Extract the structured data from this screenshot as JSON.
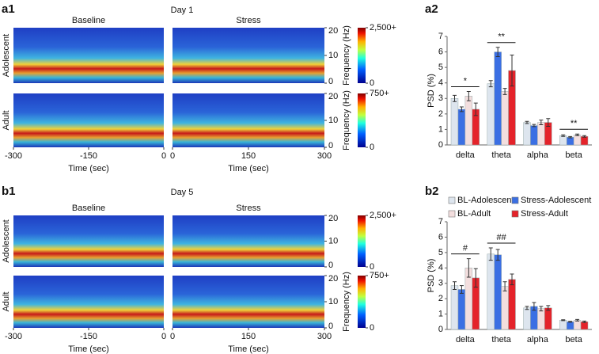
{
  "chart_data": [
    {
      "type": "spectrogram",
      "panel_label": "a1",
      "title": "Day 1",
      "panels": [
        {
          "name": "Baseline",
          "xlim": [
            -300,
            0
          ],
          "xticks": [
            -300,
            -150,
            0
          ]
        },
        {
          "name": "Stress",
          "xlim": [
            0,
            300
          ],
          "xticks": [
            0,
            150,
            300
          ]
        }
      ],
      "xlabel": "Time (sec)",
      "ylim": [
        0,
        20
      ],
      "yticks": [
        0,
        10,
        20
      ],
      "rows": [
        {
          "name": "Adolescent",
          "ylabel": "Frequency (Hz)",
          "colorbar_ticks": [
            0,
            {
              "value": 2500,
              "label": "2,500+"
            }
          ]
        },
        {
          "name": "Adult",
          "ylabel": "Frequency (Hz)",
          "colorbar_ticks": [
            0,
            {
              "value": 750,
              "label": "750+"
            }
          ]
        }
      ]
    },
    {
      "type": "bar",
      "panel_label": "a2",
      "ylabel": "PSD (%)",
      "ylim": [
        0,
        7
      ],
      "yticks": [
        0,
        1,
        2,
        3,
        4,
        5,
        6,
        7
      ],
      "categories": [
        "delta",
        "theta",
        "alpha",
        "beta"
      ],
      "legend": false,
      "series": [
        {
          "name": "BL-Adolescent",
          "color": "#dde5ee",
          "values": [
            3.0,
            3.95,
            1.45,
            0.6
          ],
          "errors": [
            0.2,
            0.2,
            0.07,
            0.05
          ]
        },
        {
          "name": "Stress-Adolescent",
          "color": "#3b6fe3",
          "values": [
            2.3,
            6.0,
            1.25,
            0.5
          ],
          "errors": [
            0.15,
            0.3,
            0.07,
            0.04
          ]
        },
        {
          "name": "BL-Adult",
          "color": "#f3dede",
          "values": [
            3.15,
            3.45,
            1.45,
            0.65
          ],
          "errors": [
            0.3,
            0.2,
            0.15,
            0.05
          ]
        },
        {
          "name": "Stress-Adult",
          "color": "#e4232a",
          "values": [
            2.3,
            4.8,
            1.45,
            0.55
          ],
          "errors": [
            0.4,
            1.0,
            0.25,
            0.05
          ]
        }
      ],
      "annotations": [
        {
          "text": "*",
          "category": "delta"
        },
        {
          "text": "**",
          "category": "theta"
        },
        {
          "text": "**",
          "category": "beta"
        }
      ]
    },
    {
      "type": "spectrogram",
      "panel_label": "b1",
      "title": "Day 5",
      "panels": [
        {
          "name": "Baseline",
          "xlim": [
            -300,
            0
          ],
          "xticks": [
            -300,
            -150,
            0
          ]
        },
        {
          "name": "Stress",
          "xlim": [
            0,
            300
          ],
          "xticks": [
            0,
            150,
            300
          ]
        }
      ],
      "xlabel": "Time (sec)",
      "ylim": [
        0,
        20
      ],
      "yticks": [
        0,
        10,
        20
      ],
      "rows": [
        {
          "name": "Adolescent",
          "colorbar_ticks": [
            0,
            {
              "value": 2500,
              "label": "2,500+"
            }
          ]
        },
        {
          "name": "Adult",
          "ylabel": "Frequency (Hz)",
          "colorbar_ticks": [
            0,
            {
              "value": 750,
              "label": "750+"
            }
          ]
        }
      ]
    },
    {
      "type": "bar",
      "panel_label": "b2",
      "ylabel": "PSD (%)",
      "ylim": [
        0,
        7
      ],
      "yticks": [
        0,
        1,
        2,
        3,
        4,
        5,
        6,
        7
      ],
      "categories": [
        "delta",
        "theta",
        "alpha",
        "beta"
      ],
      "legend": true,
      "series": [
        {
          "name": "BL-Adolescent",
          "color": "#dde5ee",
          "values": [
            2.85,
            4.9,
            1.4,
            0.6
          ],
          "errors": [
            0.25,
            0.4,
            0.1,
            0.03
          ]
        },
        {
          "name": "Stress-Adolescent",
          "color": "#3b6fe3",
          "values": [
            2.6,
            4.85,
            1.5,
            0.5
          ],
          "errors": [
            0.25,
            0.35,
            0.25,
            0.03
          ]
        },
        {
          "name": "BL-Adult",
          "color": "#f3dede",
          "values": [
            4.0,
            2.8,
            1.35,
            0.6
          ],
          "errors": [
            0.6,
            0.3,
            0.15,
            0.05
          ]
        },
        {
          "name": "Stress-Adult",
          "color": "#e4232a",
          "values": [
            3.35,
            3.25,
            1.4,
            0.5
          ],
          "errors": [
            0.6,
            0.35,
            0.15,
            0.05
          ]
        }
      ],
      "annotations": [
        {
          "text": "#",
          "category": "delta"
        },
        {
          "text": "##",
          "category": "theta"
        }
      ]
    }
  ]
}
